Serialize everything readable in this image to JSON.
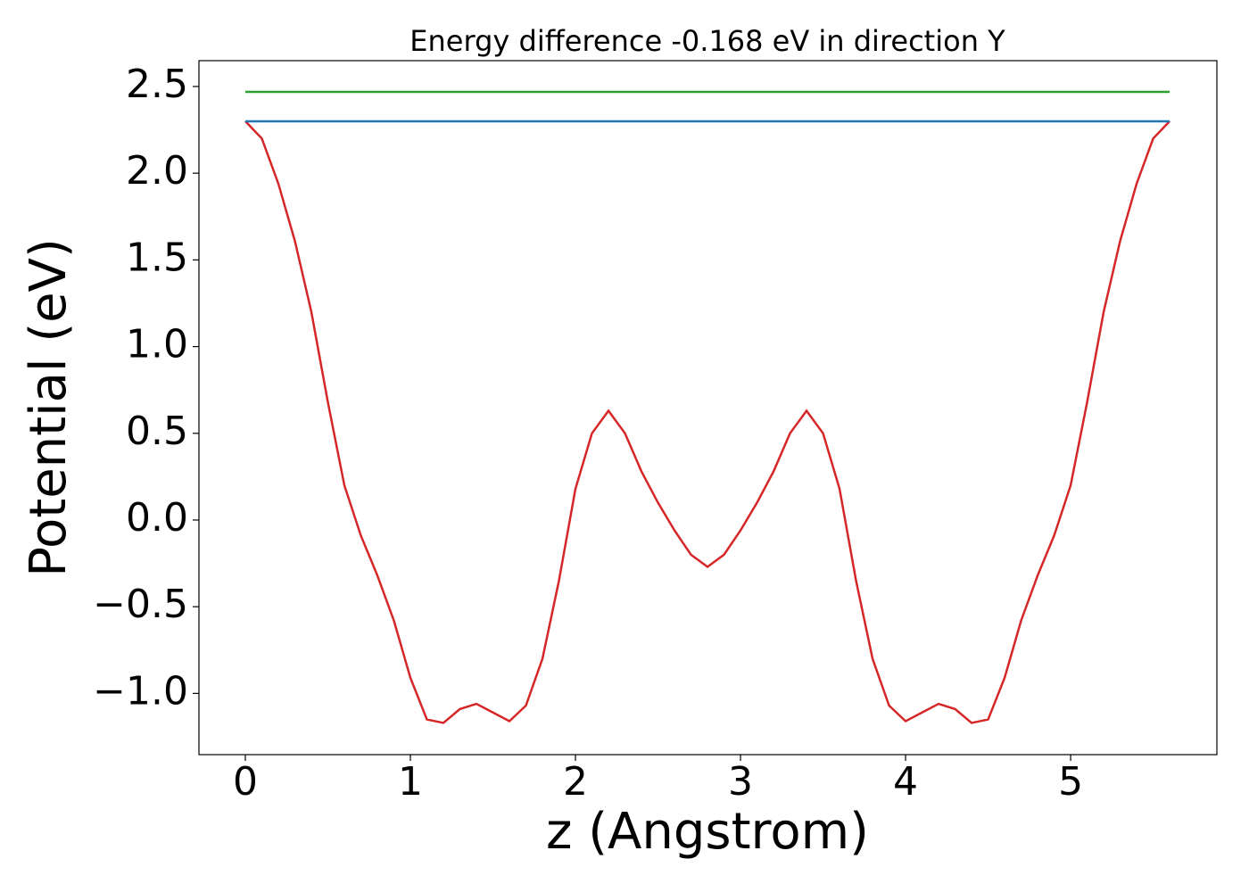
{
  "chart_data": {
    "type": "line",
    "title": "Energy difference -0.168 eV in direction Y",
    "xlabel": "z (Angstrom)",
    "ylabel": "Potential (eV)",
    "xlim": [
      -0.281,
      5.886
    ],
    "ylim": [
      -1.353,
      2.649
    ],
    "xticks": [
      0,
      1,
      2,
      3,
      4,
      5
    ],
    "yticks": [
      {
        "value": -1.0,
        "label": "−1.0"
      },
      {
        "value": -0.5,
        "label": "−0.5"
      },
      {
        "value": 0,
        "label": "0.0"
      },
      0.5,
      {
        "value": 1.0,
        "label": "1.0"
      },
      1.5,
      {
        "value": 2.0,
        "label": "2.0"
      },
      2.5
    ],
    "grid": false,
    "series": [
      {
        "color": "#d62728",
        "x": [
          0,
          0.1,
          0.2,
          0.3,
          0.4,
          0.5,
          0.6,
          0.7,
          0.8,
          0.9,
          1.0,
          1.1,
          1.2,
          1.3,
          1.4,
          1.5,
          1.6,
          1.7,
          1.8,
          1.9,
          2.0,
          2.1,
          2.2,
          2.3,
          2.4,
          2.5,
          2.6,
          2.7,
          2.8,
          2.9,
          3.0,
          3.1,
          3.2,
          3.3,
          3.4,
          3.5,
          3.6,
          3.7,
          3.8,
          3.9,
          4.0,
          4.1,
          4.2,
          4.3,
          4.4,
          4.5,
          4.6,
          4.7,
          4.8,
          4.9,
          5.0,
          5.1,
          5.2,
          5.3,
          5.4,
          5.5,
          5.6
        ],
        "values": [
          2.3,
          2.2,
          1.94,
          1.61,
          1.2,
          0.68,
          0.2,
          -0.09,
          -0.32,
          -0.58,
          -0.91,
          -1.15,
          -1.17,
          -1.09,
          -1.06,
          -1.11,
          -1.16,
          -1.07,
          -0.8,
          -0.35,
          0.18,
          0.5,
          0.63,
          0.5,
          0.28,
          0.1,
          -0.06,
          -0.2,
          -0.27,
          -0.2,
          -0.06,
          0.1,
          0.28,
          0.5,
          0.63,
          0.5,
          0.18,
          -0.35,
          -0.8,
          -1.07,
          -1.16,
          -1.11,
          -1.06,
          -1.09,
          -1.17,
          -1.15,
          -0.91,
          -0.58,
          -0.32,
          -0.09,
          0.2,
          0.68,
          1.2,
          1.61,
          1.94,
          2.2,
          2.3
        ]
      },
      {
        "color": "#2ca02c",
        "x": [
          0,
          5.6
        ],
        "values": [
          2.469,
          2.469
        ]
      },
      {
        "color": "#1f77b4",
        "x": [
          0,
          5.6
        ],
        "values": [
          2.299,
          2.299
        ]
      }
    ]
  }
}
